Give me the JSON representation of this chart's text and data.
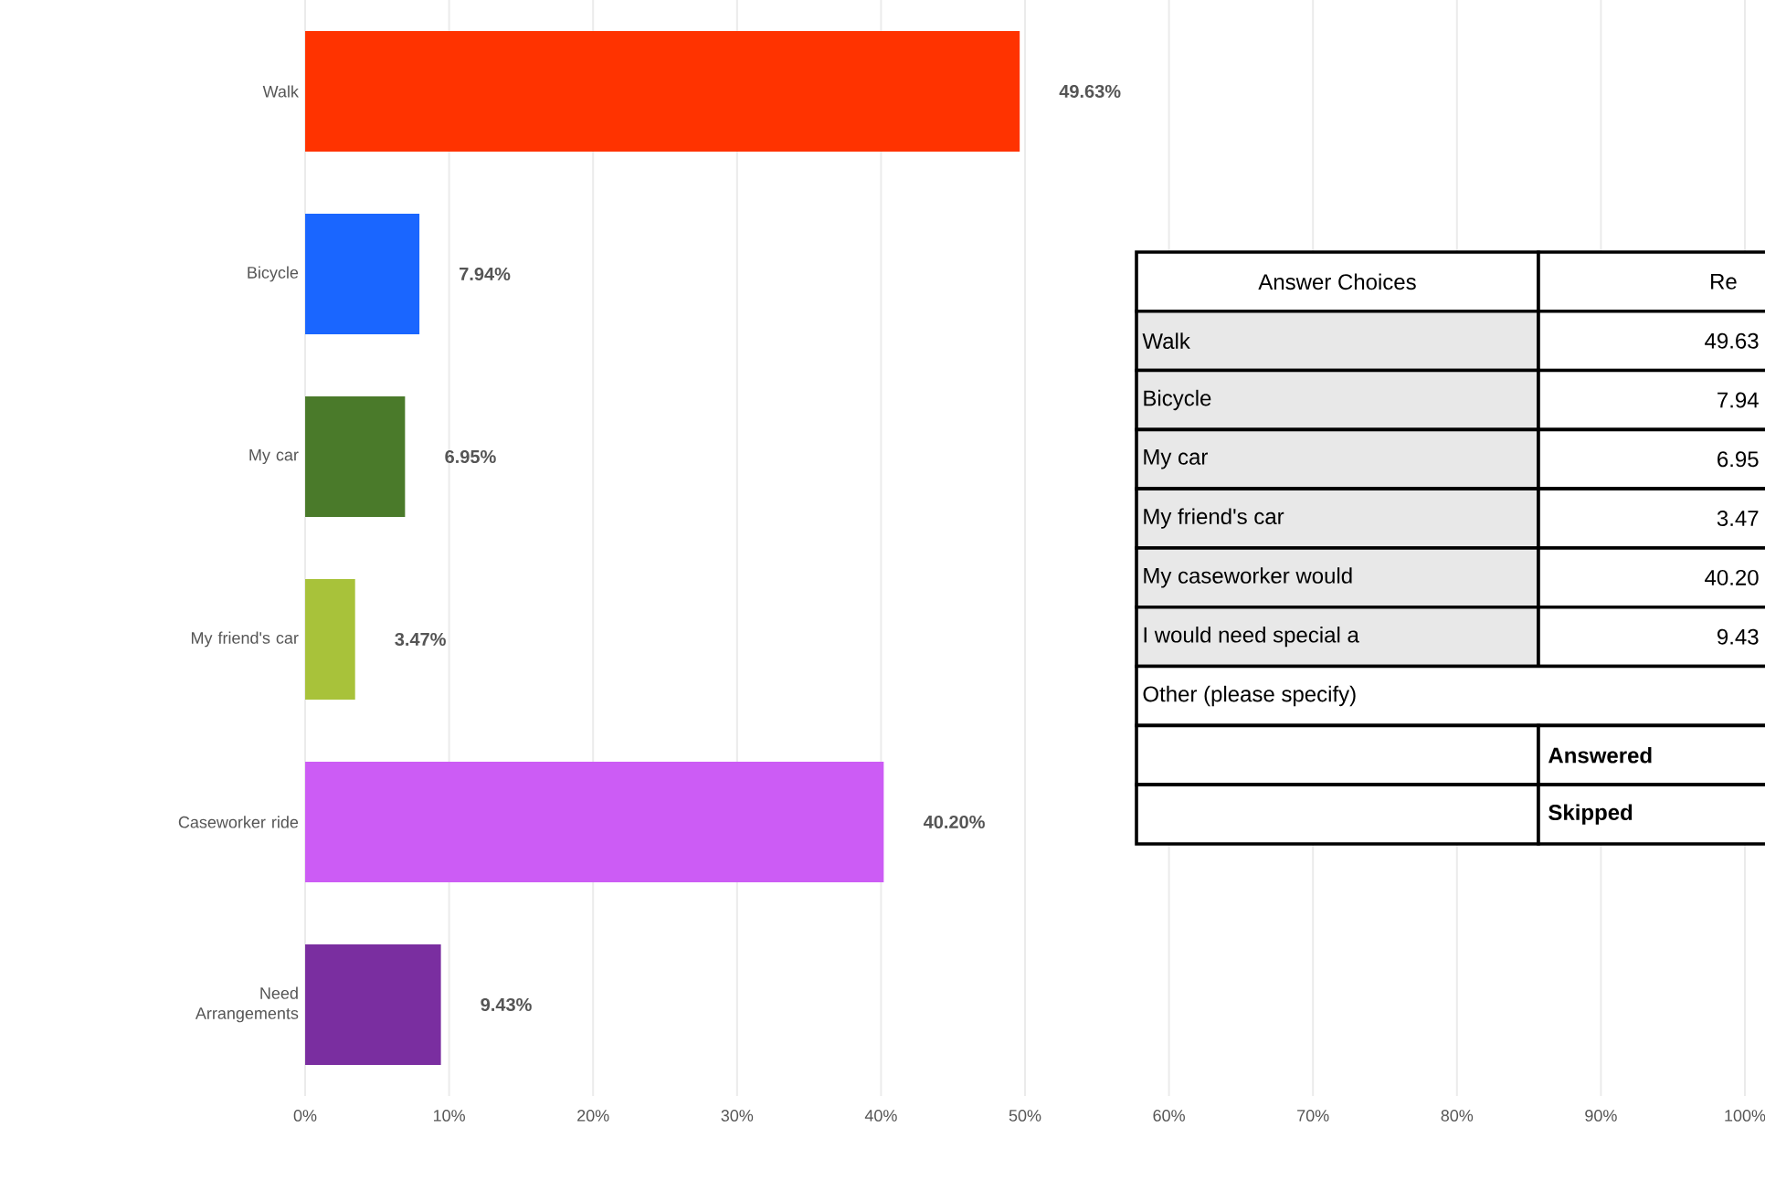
{
  "chart_data": {
    "type": "bar",
    "orientation": "horizontal",
    "categories": [
      "Walk",
      "Bicycle",
      "My car",
      "My friend's car",
      "Caseworker ride",
      "Need Arrangements"
    ],
    "values": [
      49.63,
      7.94,
      6.95,
      3.47,
      40.2,
      9.43
    ],
    "colors": [
      "#ff3300",
      "#1a66ff",
      "#4a7a2a",
      "#a8c23a",
      "#cc5cf5",
      "#7a2ea0"
    ],
    "value_labels": [
      "49.63%",
      "7.94%",
      "6.95%",
      "3.47%",
      "40.20%",
      "9.43%"
    ],
    "xlim": [
      0,
      100
    ],
    "xticks": [
      {
        "value": 0,
        "label": "0%"
      },
      {
        "value": 10,
        "label": "10%"
      },
      {
        "value": 20,
        "label": "20%"
      },
      {
        "value": 30,
        "label": "30%"
      },
      {
        "value": 40,
        "label": "40%"
      },
      {
        "value": 50,
        "label": "50%"
      },
      {
        "value": 60,
        "label": "60%"
      },
      {
        "value": 70,
        "label": "70%"
      },
      {
        "value": 80,
        "label": "80%"
      },
      {
        "value": 90,
        "label": "90%"
      },
      {
        "value": 100,
        "label": "100%"
      }
    ],
    "grid": "x",
    "annotations": [
      "Answer Choices",
      "Re",
      "Walk",
      "49.63",
      "Bicycle",
      "7.94",
      "My car",
      "6.95",
      "My friend's car",
      "3.47",
      "My caseworker would",
      "40.20",
      "I would need special a",
      "9.43",
      "Other (please specify)",
      "Answered",
      "Skipped"
    ]
  }
}
